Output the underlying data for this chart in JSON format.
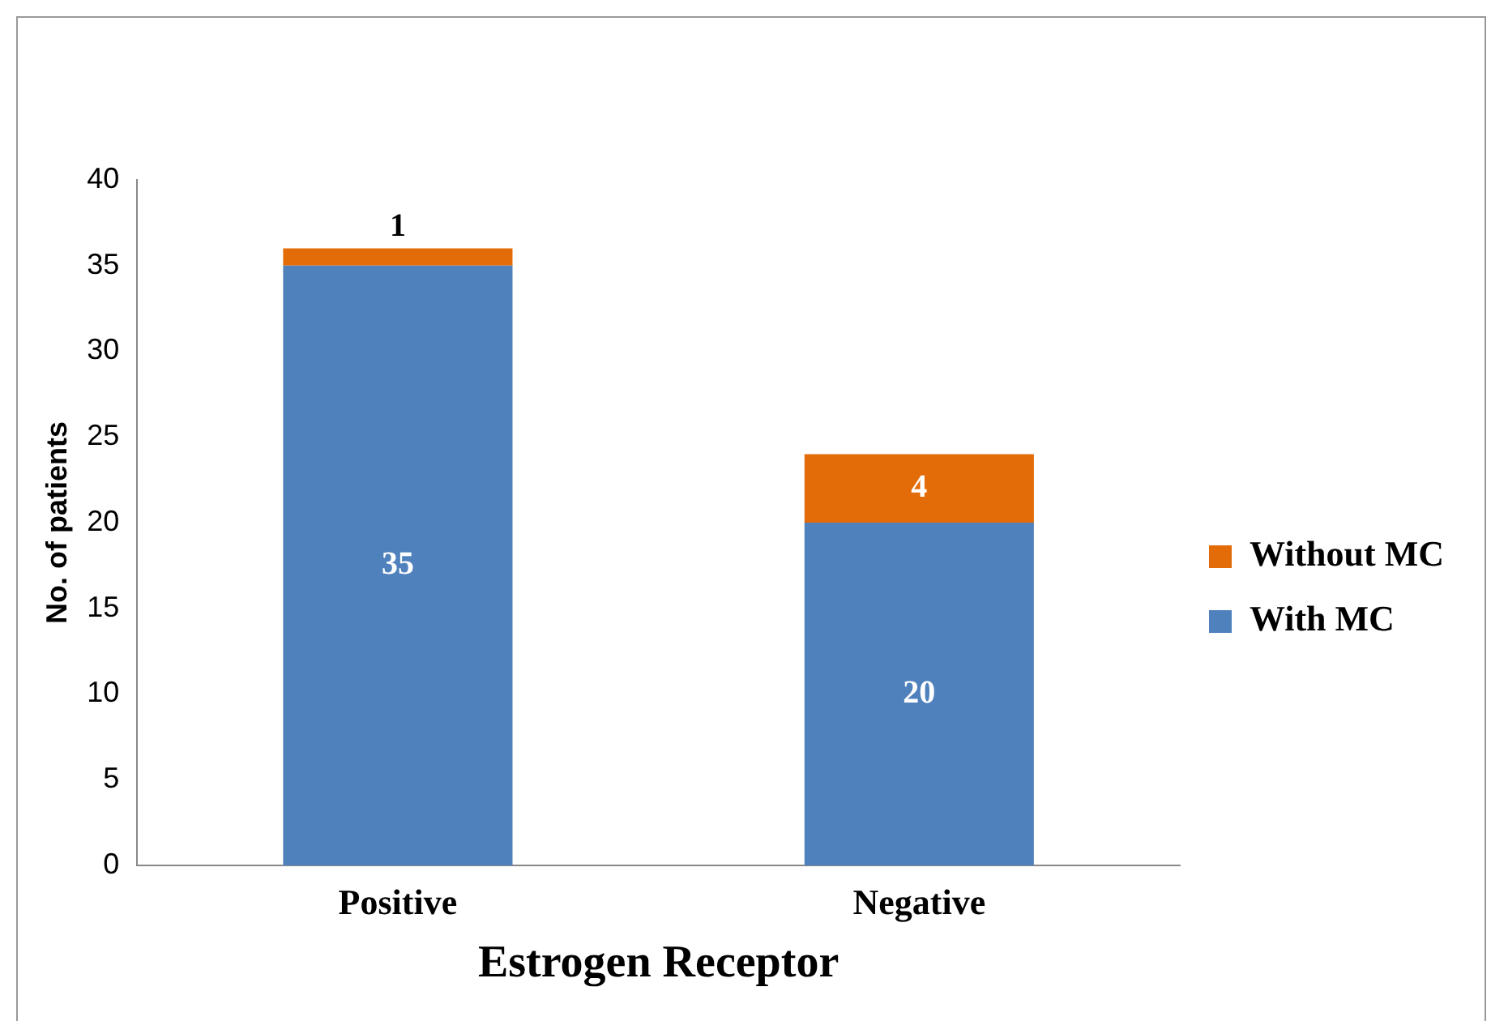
{
  "chart_data": {
    "type": "bar",
    "stacked": true,
    "xlabel": "Estrogen Receptor",
    "ylabel": "No. of patients",
    "categories": [
      "Positive",
      "Negative"
    ],
    "series": [
      {
        "name": "With MC",
        "color": "#4f81bd",
        "values": [
          35,
          20
        ]
      },
      {
        "name": "Without MC",
        "color": "#e36c09",
        "values": [
          1,
          4
        ]
      }
    ],
    "ylim": [
      0,
      40
    ],
    "yticks": [
      0,
      5,
      10,
      15,
      20,
      25,
      30,
      35,
      40
    ],
    "grid": false,
    "legend": "right",
    "data_labels": true
  }
}
